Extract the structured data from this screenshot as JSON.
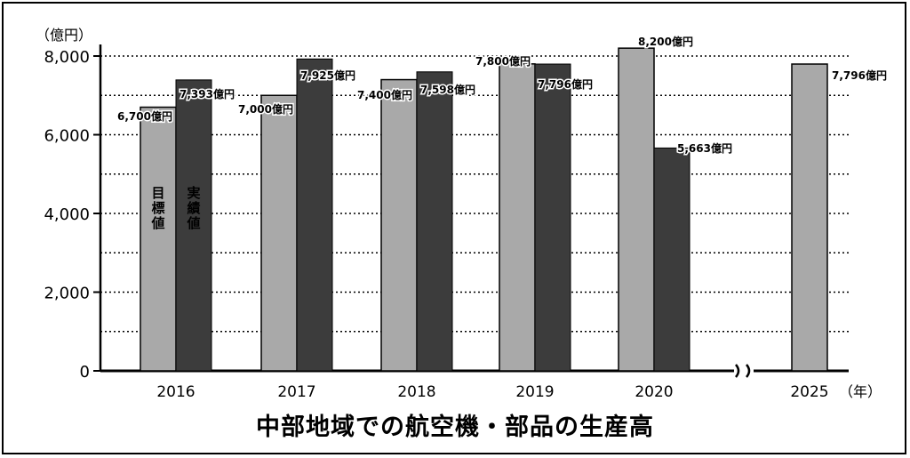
{
  "chart_data": {
    "type": "bar",
    "title": "中部地域での航空機・部品の生産高",
    "ylabel": "（億円）",
    "xlabel": "（年）",
    "ylim": [
      0,
      8000
    ],
    "yticks": [
      "0",
      "2,000",
      "4,000",
      "6,000",
      "8,000"
    ],
    "ytick_values": [
      0,
      2000,
      4000,
      6000,
      8000
    ],
    "grid": "dotted horizontal",
    "axis_break": "between 2020 and 2025",
    "categories": [
      "2016",
      "2017",
      "2018",
      "2019",
      "2020",
      "2025"
    ],
    "series": [
      {
        "name": "目標値",
        "color": "#a9a9a9",
        "values": [
          6700,
          7000,
          7400,
          7800,
          8200,
          7796
        ],
        "labels": [
          "6,700億円",
          "7,000億円",
          "7,400億円",
          "7,800億円",
          "8,200億円",
          "7,796億円"
        ]
      },
      {
        "name": "実績値",
        "color": "#3c3c3c",
        "values": [
          7393,
          7925,
          7598,
          7796,
          5663,
          null
        ],
        "labels": [
          "7,393億円",
          "7,925億円",
          "7,598億円",
          "7,796億円",
          "5,663億円",
          null
        ]
      }
    ]
  }
}
